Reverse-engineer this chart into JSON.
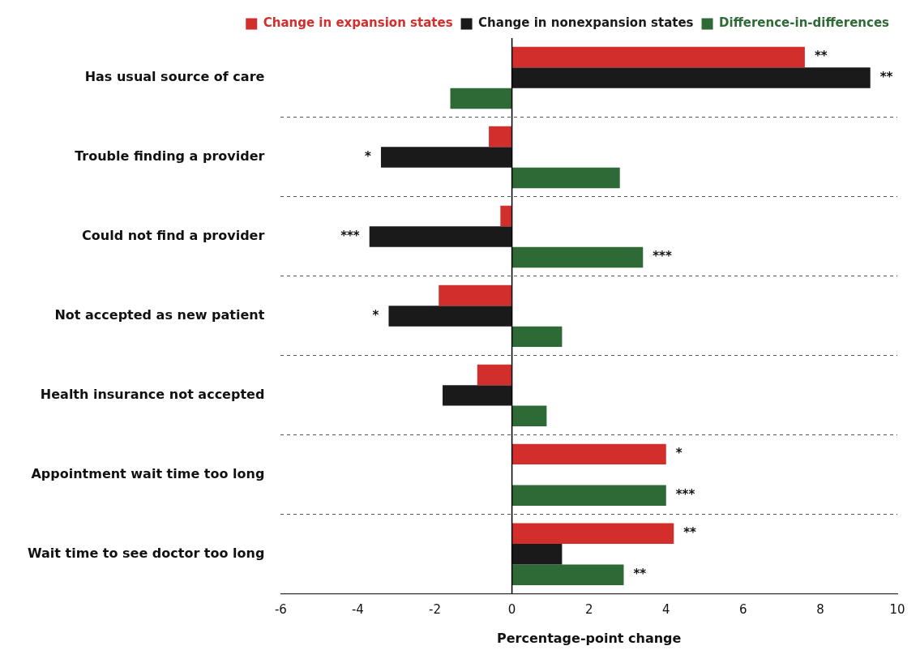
{
  "chart_data": {
    "type": "bar",
    "orientation": "horizontal",
    "xlabel": "Percentage-point change",
    "categories": [
      "Has usual source of care",
      "Trouble finding a provider",
      "Could not find a provider",
      "Not accepted as new patient",
      "Health insurance not accepted",
      "Appointment wait time too long",
      "Wait time to see doctor too long"
    ],
    "series": [
      {
        "name": "Change in expansion states",
        "color": "#d22f2c",
        "values": [
          7.6,
          -0.6,
          -0.3,
          -1.9,
          -0.9,
          4.0,
          4.2
        ],
        "value_labels": [
          "**",
          null,
          null,
          null,
          null,
          "*",
          "**"
        ]
      },
      {
        "name": "Change in nonexpansion states",
        "color": "#1a1a1a",
        "values": [
          9.3,
          -3.4,
          -3.7,
          -3.2,
          -1.8,
          null,
          1.3
        ],
        "value_labels": [
          "**",
          "*",
          "***",
          "*",
          null,
          null,
          null
        ]
      },
      {
        "name": "Difference-in-differences",
        "color": "#2d6a35",
        "values": [
          -1.6,
          2.8,
          3.4,
          1.3,
          0.9,
          4.0,
          2.9
        ],
        "value_labels": [
          null,
          null,
          "***",
          null,
          null,
          "***",
          "**"
        ]
      }
    ],
    "xlim": [
      -6,
      10
    ],
    "xticks": [
      -6,
      -4,
      -2,
      0,
      2,
      4,
      6,
      8,
      10
    ],
    "grid": "y",
    "line_style": "dashed",
    "legend": "top right",
    "ref_lines": [
      {
        "axis": "x",
        "value": 0,
        "color": "#000000"
      }
    ]
  }
}
